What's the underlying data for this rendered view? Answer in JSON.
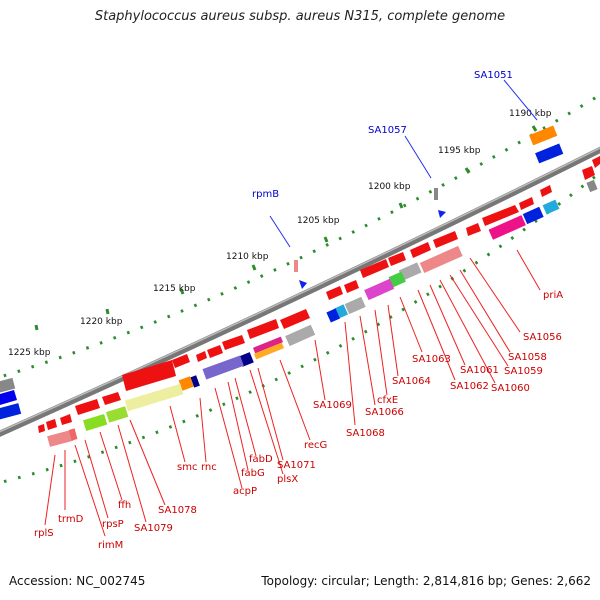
{
  "title": "Staphylococcus aureus subsp. aureus N315, complete genome",
  "footer": {
    "accession": "Accession: NC_002745",
    "summary": "Topology: circular; Length: 2,814,816 bp; Genes: 2,662"
  },
  "colors": {
    "backbone": "#808080",
    "ruler_dots": "#2e8b2e",
    "label_red": "#cc0000",
    "label_blue": "#0000cc",
    "leader_red": "#ee2222",
    "leader_blue": "#3333ee",
    "gene_red": "#ee1111",
    "gene_blue": "#0022dd",
    "gene_orange": "#ff8800",
    "gene_gray": "#999999",
    "gene_pink": "#ee6688",
    "gene_magenta": "#ee1188",
    "gene_yellow": "#eeee99",
    "gene_green": "#88dd22",
    "gene_violet": "#7766cc",
    "gene_cyan": "#22aadd"
  },
  "ruler_labels": [
    "1190 kbp",
    "1195 kbp",
    "1200 kbp",
    "1205 kbp",
    "1210 kbp",
    "1215 kbp",
    "1220 kbp",
    "1225 kbp"
  ],
  "gene_labels_top": [
    "SA1051",
    "SA1057",
    "rpmB"
  ],
  "gene_labels_bottom": [
    "priA",
    "SA1056",
    "SA1058",
    "SA1059",
    "SA1060",
    "SA1061",
    "SA1062",
    "SA1063",
    "SA1064",
    "cfxE",
    "SA1066",
    "SA1068",
    "SA1069",
    "recG",
    "SA1071",
    "plsX",
    "fabD",
    "fabG",
    "acpP",
    "rnc",
    "smc",
    "SA1078",
    "SA1079",
    "ffh",
    "rpsP",
    "rimM",
    "trmD",
    "rplS"
  ]
}
